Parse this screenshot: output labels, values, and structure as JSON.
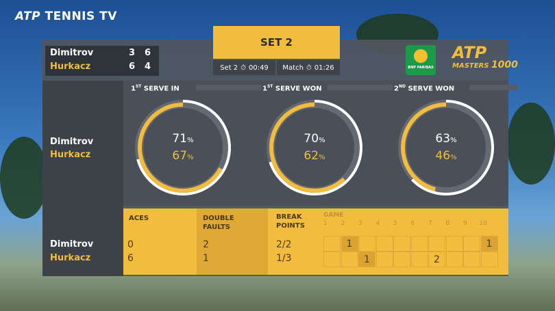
{
  "brand": {
    "name": "ATP TENNIS TV",
    "prefix": "ATP",
    "suffix": "TENNIS TV"
  },
  "scoreboard": {
    "players": [
      {
        "name": "Dimitrov",
        "sets": [
          "3",
          "6"
        ]
      },
      {
        "name": "Hurkacz",
        "sets": [
          "6",
          "4"
        ]
      }
    ]
  },
  "set_title": "SET 2",
  "timers": [
    {
      "label": "Set 2",
      "icon": "stopwatch-icon",
      "time": "00:49"
    },
    {
      "label": "Match",
      "icon": "stopwatch-icon",
      "time": "01:26"
    }
  ],
  "logos": {
    "tournament": "BNP PARIBAS OPEN",
    "tour": "ATP MASTERS 1000"
  },
  "players": [
    "Dimitrov",
    "Hurkacz"
  ],
  "serve_stats": [
    {
      "label_sup": "ST",
      "label_pre": "1",
      "label": "SERVE IN",
      "p1": 71,
      "p2": 67,
      "p1_text": "71",
      "p2_text": "67"
    },
    {
      "label_sup": "ST",
      "label_pre": "1",
      "label": "SERVE WON",
      "p1": 70,
      "p2": 62,
      "p1_text": "70",
      "p2_text": "62"
    },
    {
      "label_sup": "ND",
      "label_pre": "2",
      "label": "SERVE WON",
      "p1": 63,
      "p2": 46,
      "p1_text": "63",
      "p2_text": "46"
    }
  ],
  "pct_sign": "%",
  "stats": {
    "aces": {
      "label": "ACES",
      "values": [
        "0",
        "6"
      ]
    },
    "double_faults": {
      "label_1": "DOUBLE",
      "label_2": "FAULTS",
      "values": [
        "2",
        "1"
      ]
    },
    "break_points": {
      "label_1": "BREAK",
      "label_2": "POINTS",
      "values": [
        "2/2",
        "1/3"
      ]
    }
  },
  "games": {
    "label": "GAME",
    "numbers": [
      "1",
      "2",
      "3",
      "4",
      "5",
      "6",
      "7",
      "8",
      "9",
      "10"
    ],
    "rows": [
      [
        "",
        "1",
        "",
        "",
        "",
        "",
        "",
        "",
        "",
        "1"
      ],
      [
        "",
        "",
        "1",
        "",
        "",
        "",
        "2",
        "",
        "",
        ""
      ]
    ]
  },
  "colors": {
    "accent": "#f2bd3e",
    "panel": "#50565e",
    "p1": "#ffffff",
    "p2": "#f0bd3e"
  }
}
